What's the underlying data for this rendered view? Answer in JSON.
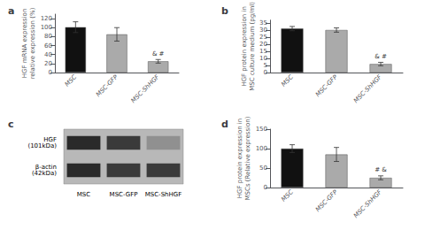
{
  "chart_data": [
    {
      "type": "bar",
      "title": "a",
      "categories": [
        "MSC",
        "MSC-GFP",
        "MSC-ShHGF"
      ],
      "values": [
        101,
        85,
        25
      ],
      "errors": [
        12,
        15,
        4
      ],
      "colors": [
        "#111111",
        "#aaaaaa",
        "#aaaaaa"
      ],
      "ylabel": "HGF mRNA expression\nrelative expression (%)",
      "ylim": [
        0,
        130
      ],
      "yticks": [
        0,
        20,
        40,
        60,
        80,
        100,
        120
      ],
      "annotations": [
        {
          "category": "MSC-ShHGF",
          "text": "& #"
        }
      ],
      "grid": false
    },
    {
      "type": "bar",
      "title": "b",
      "categories": [
        "MSC",
        "MSC-GFP",
        "MSC-ShHGF"
      ],
      "values": [
        31,
        30,
        6
      ],
      "errors": [
        1.5,
        1.5,
        1.2
      ],
      "colors": [
        "#111111",
        "#aaaaaa",
        "#aaaaaa"
      ],
      "ylabel": "HGF protein expression in\nMSC culture medium (pg/ml)",
      "ylim": [
        0,
        37
      ],
      "yticks": [
        0,
        5,
        10,
        15,
        20,
        25,
        30,
        35
      ],
      "annotations": [
        {
          "category": "MSC-ShHGF",
          "text": "& #"
        }
      ],
      "grid": false
    },
    {
      "type": "blot",
      "title": "c",
      "categories": [
        "MSC",
        "MSC-GFP",
        "MSC-ShHGF"
      ],
      "color": "#b8b8b8",
      "series": [
        {
          "name": "HGF\n(101kDa)",
          "colors": [
            "#2a2a2a",
            "#3a3a3a",
            "#909090"
          ]
        },
        {
          "name": "β-actin\n(42kDa)",
          "colors": [
            "#2a2a2a",
            "#3a3a3a",
            "#3a3a3a"
          ]
        }
      ]
    },
    {
      "type": "bar",
      "title": "d",
      "categories": [
        "MSC",
        "MSC-GFP",
        "MSC-ShHGF"
      ],
      "values": [
        100,
        85,
        25
      ],
      "errors": [
        10,
        18,
        5
      ],
      "colors": [
        "#111111",
        "#aaaaaa",
        "#aaaaaa"
      ],
      "ylabel": "HGF protein expression in\nMSCs (Relative expression)",
      "ylim": [
        0,
        150
      ],
      "yticks": [
        0,
        50,
        100,
        150
      ],
      "annotations": [
        {
          "category": "MSC-ShHGF",
          "text": "# &"
        }
      ],
      "grid": false
    }
  ]
}
